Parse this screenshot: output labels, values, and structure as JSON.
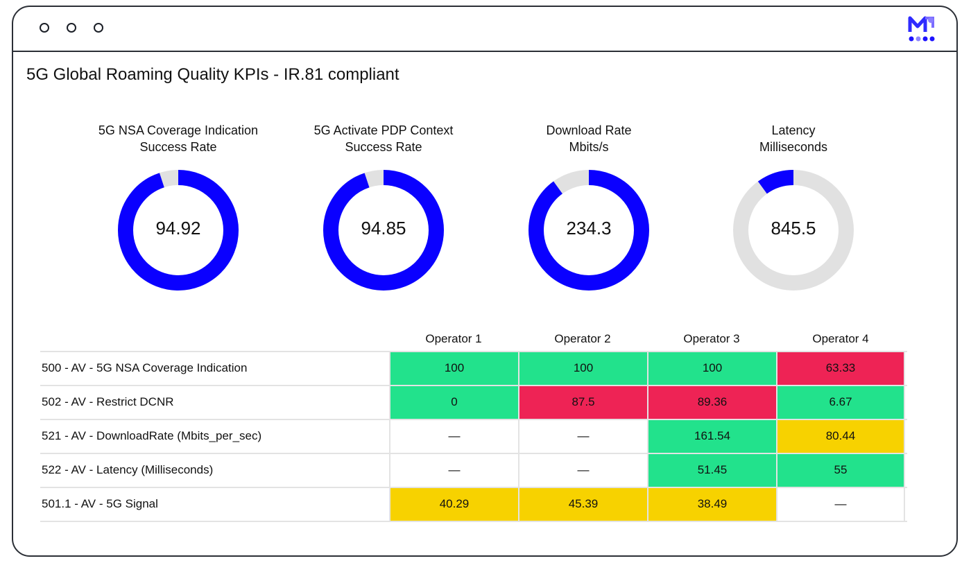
{
  "window": {
    "controls": [
      "dot",
      "dot",
      "dot"
    ]
  },
  "page_title": "5G Global Roaming Quality KPIs - IR.81 compliant",
  "colors": {
    "accent": "#0a00ff",
    "track": "#e1e1e1",
    "good": "#22e28c",
    "bad": "#ee2355",
    "warn": "#f7d200",
    "neutral": "#ffffff"
  },
  "kpis": [
    {
      "title_1": "5G NSA Coverage Indication",
      "title_2": "Success Rate",
      "value": "94.92",
      "fill": 0.9492,
      "start": 0
    },
    {
      "title_1": "5G Activate PDP Context",
      "title_2": "Success Rate",
      "value": "94.85",
      "fill": 0.9485,
      "start": 0
    },
    {
      "title_1": "Download Rate",
      "title_2": "Mbits/s",
      "value": "234.3",
      "fill": 0.9,
      "start": 0
    },
    {
      "title_1": "Latency",
      "title_2": "Milliseconds",
      "value": "845.5",
      "fill": 0.1,
      "start": -0.1
    }
  ],
  "table": {
    "columns": [
      "Operator 1",
      "Operator 2",
      "Operator 3",
      "Operator 4"
    ],
    "rows": [
      {
        "label": "500 - AV - 5G NSA Coverage Indication",
        "cells": [
          {
            "v": "100",
            "s": "good"
          },
          {
            "v": "100",
            "s": "good"
          },
          {
            "v": "100",
            "s": "good"
          },
          {
            "v": "63.33",
            "s": "bad"
          }
        ]
      },
      {
        "label": "502 - AV - Restrict DCNR",
        "cells": [
          {
            "v": "0",
            "s": "good"
          },
          {
            "v": "87.5",
            "s": "bad"
          },
          {
            "v": "89.36",
            "s": "bad"
          },
          {
            "v": "6.67",
            "s": "good"
          }
        ]
      },
      {
        "label": "521 - AV - DownloadRate (Mbits_per_sec)",
        "cells": [
          {
            "v": "—",
            "s": "neutral"
          },
          {
            "v": "—",
            "s": "neutral"
          },
          {
            "v": "161.54",
            "s": "good"
          },
          {
            "v": "80.44",
            "s": "warn"
          }
        ]
      },
      {
        "label": "522 - AV - Latency (Milliseconds)",
        "cells": [
          {
            "v": "—",
            "s": "neutral"
          },
          {
            "v": "—",
            "s": "neutral"
          },
          {
            "v": "51.45",
            "s": "good"
          },
          {
            "v": "55",
            "s": "good"
          }
        ]
      },
      {
        "label": "501.1 - AV - 5G Signal",
        "cells": [
          {
            "v": "40.29",
            "s": "warn"
          },
          {
            "v": "45.39",
            "s": "warn"
          },
          {
            "v": "38.49",
            "s": "warn"
          },
          {
            "v": "—",
            "s": "neutral"
          }
        ]
      }
    ]
  }
}
